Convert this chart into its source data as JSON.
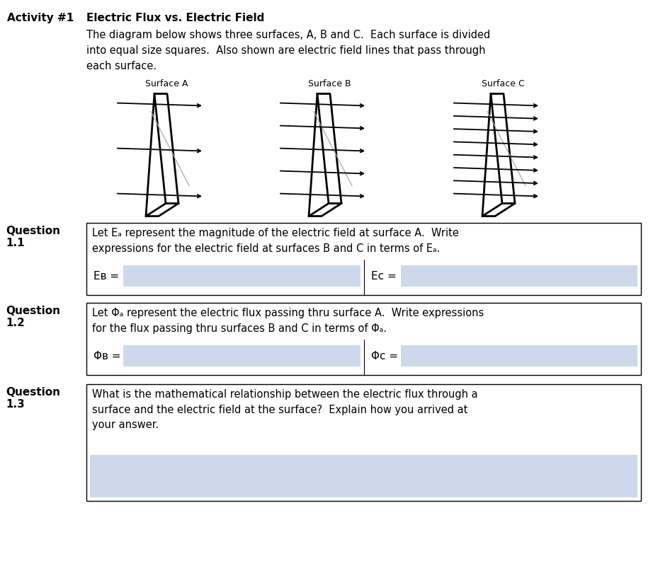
{
  "title_label": "Activity #1",
  "title_text": "Electric Flux vs. Electric Field",
  "description": "The diagram below shows three surfaces, A, B and C.  Each surface is divided\ninto equal size squares.  Also shown are electric field lines that pass through\neach surface.",
  "surface_labels": [
    "Surface A",
    "Surface B",
    "Surface C"
  ],
  "bg_color": "#ffffff",
  "box_bg": "#cdd8ec",
  "q1_label": "Question\n1.1",
  "q1_text": "Let Eₐ represent the magnitude of the electric field at surface A.  Write\nexpressions for the electric field at surfaces B and C in terms of Eₐ.",
  "q1_eb": "Eʙ =",
  "q1_ec": "Eᴄ =",
  "q2_label": "Question\n1.2",
  "q2_text": "Let Φₐ represent the electric flux passing thru surface A.  Write expressions\nfor the flux passing thru surfaces B and C in terms of Φₐ.",
  "q2_phib": "Φʙ =",
  "q2_phic": "Φᴄ =",
  "q3_label": "Question\n1.3",
  "q3_text": "What is the mathematical relationship between the electric flux through a\nsurface and the electric field at the surface?  Explain how you arrived at\nyour answer.",
  "surface_A_lines": 3,
  "surface_B_lines": 5,
  "surface_C_lines": 8
}
